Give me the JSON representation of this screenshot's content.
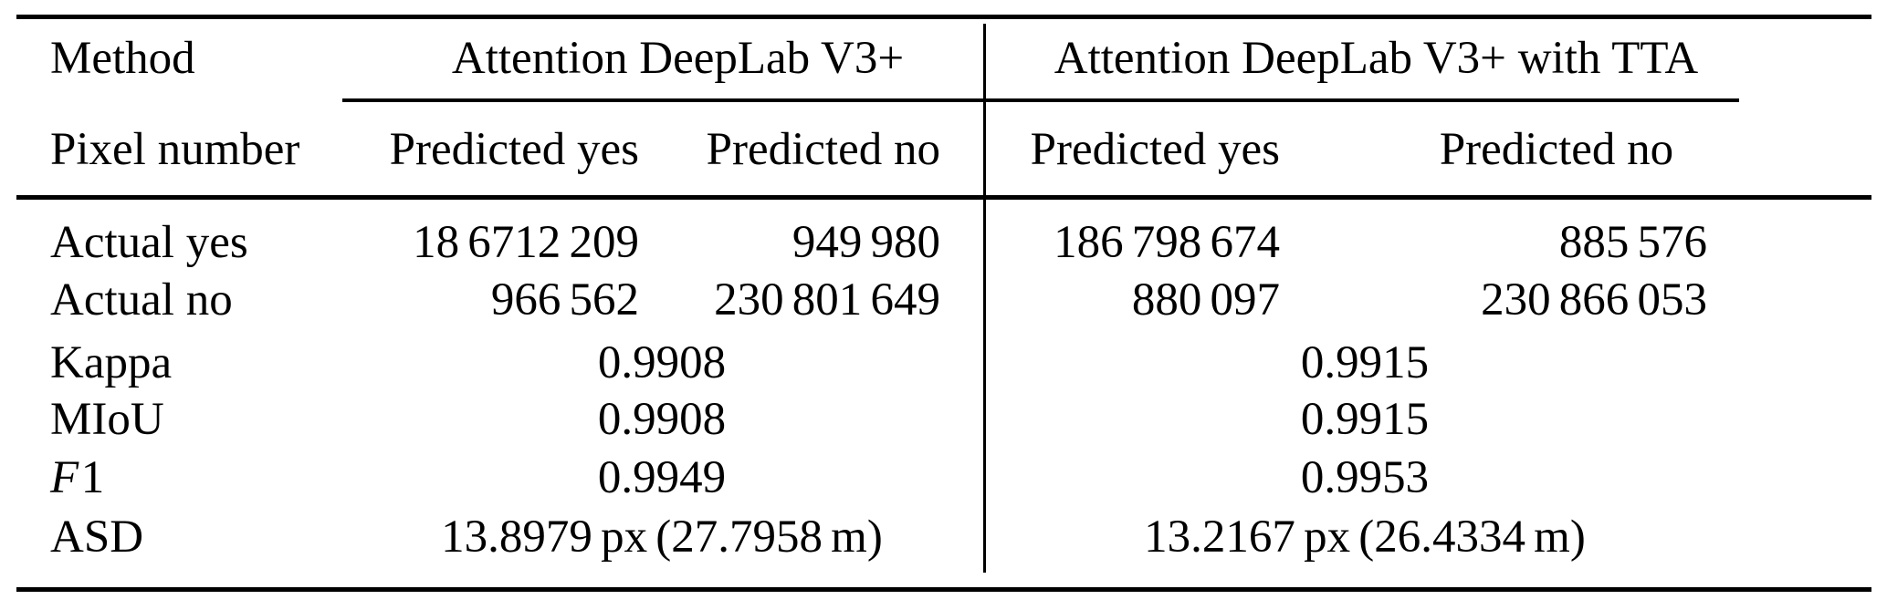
{
  "page": {
    "background_color": "#ffffff",
    "text_color": "#000000"
  },
  "table": {
    "header": {
      "method": "Method",
      "group1": "Attention DeepLab V3+",
      "group2": "Attention DeepLab V3+ with TTA"
    },
    "subheader": {
      "label": "Pixel number",
      "g1_predicted_yes": "Predicted yes",
      "g1_predicted_no": "Predicted no",
      "g2_predicted_yes": "Predicted yes",
      "g2_predicted_no": "Predicted no"
    },
    "rows": [
      {
        "label": "Actual yes",
        "g1_yes": "18 6712 209",
        "g1_no": "949 980",
        "g2_yes": "186 798 674",
        "g2_no": "885 576"
      },
      {
        "label": "Actual no",
        "g1_yes": "966 562",
        "g1_no": "230 801 649",
        "g2_yes": "880 097",
        "g2_no": "230 866 053"
      },
      {
        "label": "Kappa",
        "g1_value": "0.9908",
        "g2_value": "0.9915"
      },
      {
        "label": "MIoU",
        "g1_value": "0.9908",
        "g2_value": "0.9915"
      },
      {
        "label_italic": "F",
        "label_suffix": "1",
        "g1_value": "0.9949",
        "g2_value": "0.9953"
      },
      {
        "label": "ASD",
        "g1_value": "13.8979 px (27.7958 m)",
        "g2_value": "13.2167 px (26.4334 m)"
      }
    ]
  }
}
